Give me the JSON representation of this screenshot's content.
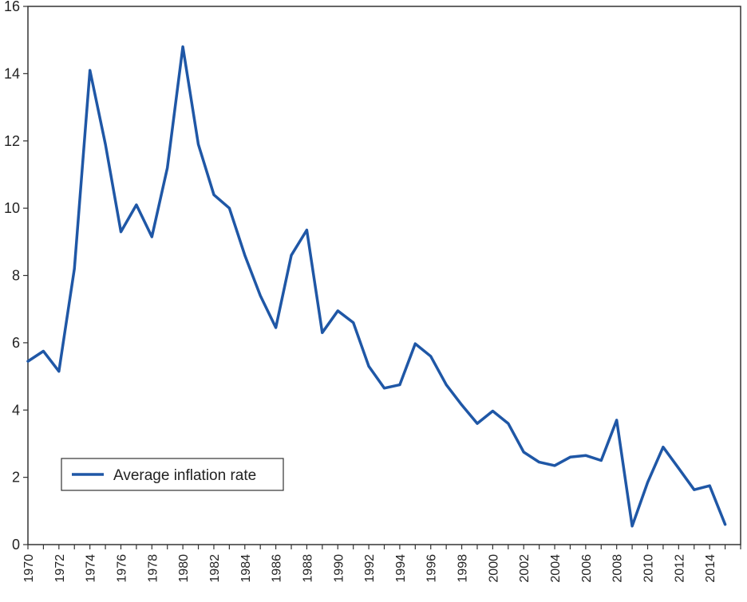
{
  "chart_data": {
    "type": "line",
    "title": "",
    "xlabel": "",
    "ylabel": "",
    "xlim": [
      1970,
      2016
    ],
    "ylim": [
      0,
      16
    ],
    "grid": false,
    "legend_position": "bottom-left",
    "x_ticks": [
      "1970",
      "1972",
      "1974",
      "1976",
      "1978",
      "1980",
      "1982",
      "1984",
      "1986",
      "1988",
      "1990",
      "1992",
      "1994",
      "1996",
      "1998",
      "2000",
      "2002",
      "2004",
      "2006",
      "2008",
      "2010",
      "2012",
      "2014"
    ],
    "y_ticks": [
      "0",
      "2",
      "4",
      "6",
      "8",
      "10",
      "12",
      "14",
      "16"
    ],
    "x": [
      1970,
      1971,
      1972,
      1973,
      1974,
      1975,
      1976,
      1977,
      1978,
      1979,
      1980,
      1981,
      1982,
      1983,
      1984,
      1985,
      1986,
      1987,
      1988,
      1989,
      1990,
      1991,
      1992,
      1993,
      1994,
      1995,
      1996,
      1997,
      1998,
      1999,
      2000,
      2001,
      2002,
      2003,
      2004,
      2005,
      2006,
      2007,
      2008,
      2009,
      2010,
      2011,
      2012,
      2013,
      2014,
      2015
    ],
    "series": [
      {
        "name": "Average inflation rate",
        "color": "#1f57a6",
        "values": [
          5.45,
          5.75,
          5.15,
          8.2,
          14.1,
          11.9,
          9.3,
          10.1,
          9.15,
          11.2,
          14.8,
          11.9,
          10.4,
          10.0,
          8.6,
          7.4,
          6.45,
          8.6,
          9.35,
          6.3,
          6.95,
          6.6,
          5.3,
          4.65,
          4.75,
          5.97,
          5.6,
          4.75,
          4.15,
          3.6,
          3.97,
          3.6,
          2.75,
          2.45,
          2.35,
          2.6,
          2.65,
          2.5,
          3.7,
          0.55,
          1.85,
          2.9,
          2.27,
          1.63,
          1.75,
          0.6
        ]
      }
    ]
  }
}
